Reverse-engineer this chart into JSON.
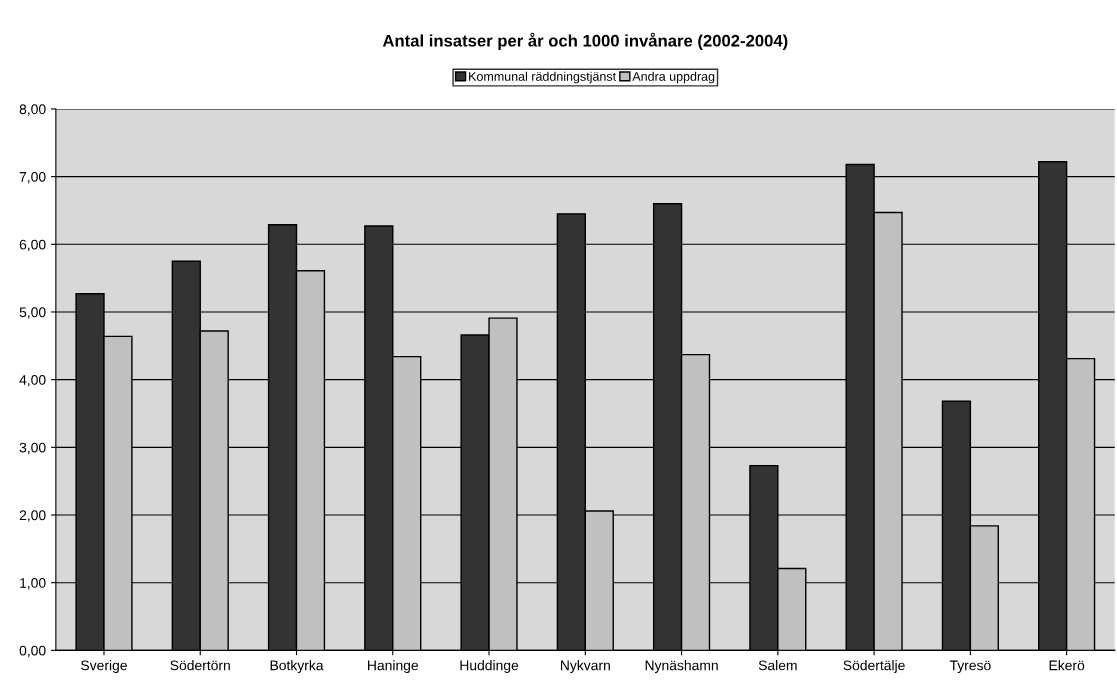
{
  "chart_data": {
    "type": "bar",
    "title": "Antal insatser per år och 1000 invånare (2002-2004)",
    "categories": [
      "Sverige",
      "Södertörn",
      "Botkyrka",
      "Haninge",
      "Huddinge",
      "Nykvarn",
      "Nynäshamn",
      "Salem",
      "Södertälje",
      "Tyresö",
      "Ekerö"
    ],
    "series": [
      {
        "name": "Kommunal räddningstjänst",
        "color": "#333333",
        "values": [
          5.27,
          5.75,
          6.29,
          6.27,
          4.66,
          6.45,
          6.6,
          2.73,
          7.18,
          3.68,
          7.22
        ]
      },
      {
        "name": "Andra uppdrag",
        "color": "#c0c0c0",
        "values": [
          4.64,
          4.72,
          5.61,
          4.34,
          4.91,
          2.06,
          4.37,
          1.21,
          6.47,
          1.84,
          4.31
        ]
      }
    ],
    "ylim": [
      0,
      8
    ],
    "yticks": [
      {
        "value": 0,
        "label": "0,00"
      },
      {
        "value": 1,
        "label": "1,00"
      },
      {
        "value": 2,
        "label": "2,00"
      },
      {
        "value": 3,
        "label": "3,00"
      },
      {
        "value": 4,
        "label": "4,00"
      },
      {
        "value": 5,
        "label": "5,00"
      },
      {
        "value": 6,
        "label": "6,00"
      },
      {
        "value": 7,
        "label": "7,00"
      },
      {
        "value": 8,
        "label": "8,00"
      }
    ],
    "grid": "y",
    "legend": "top"
  }
}
